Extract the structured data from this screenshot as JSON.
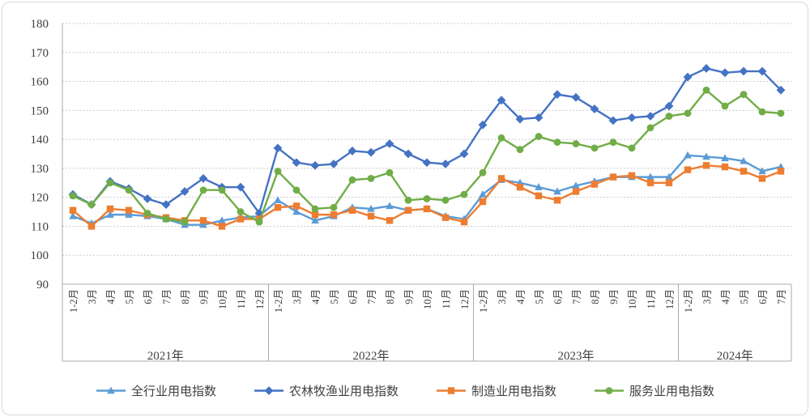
{
  "chart_data": {
    "type": "line",
    "title": "",
    "xlabel": "",
    "ylabel": "",
    "ylim": [
      90,
      180
    ],
    "yticks": [
      90,
      100,
      110,
      120,
      130,
      140,
      150,
      160,
      170,
      180
    ],
    "grid": "horizontal-dotted",
    "legend_position": "bottom",
    "style": {
      "background": "#ffffff",
      "border_color": "#d9d9d9",
      "axis_color": "#ababab",
      "grid_color": "#c9c9c9",
      "text_color": "#404040"
    },
    "year_groups": [
      {
        "label": "2021年",
        "months": [
          "1-2月",
          "3月",
          "4月",
          "5月",
          "6月",
          "7月",
          "8月",
          "9月",
          "10月",
          "11月",
          "12月"
        ]
      },
      {
        "label": "2022年",
        "months": [
          "1-2月",
          "3月",
          "4月",
          "5月",
          "6月",
          "7月",
          "8月",
          "9月",
          "10月",
          "11月",
          "12月"
        ]
      },
      {
        "label": "2023年",
        "months": [
          "1-2月",
          "3月",
          "4月",
          "5月",
          "6月",
          "7月",
          "8月",
          "9月",
          "10月",
          "11月",
          "12月"
        ]
      },
      {
        "label": "2024年",
        "months": [
          "1-2月",
          "3月",
          "4月",
          "5月",
          "6月",
          "7月"
        ]
      }
    ],
    "series": [
      {
        "name": "全行业用电指数",
        "marker": "triangle",
        "color": "#5B9BD5",
        "values": [
          113.5,
          111,
          114,
          114,
          113.5,
          112.5,
          110.5,
          110.5,
          112,
          113,
          113.5,
          119,
          115,
          112,
          113.5,
          116.5,
          116,
          117,
          115.5,
          116,
          113.5,
          112.5,
          121,
          126,
          125,
          123.5,
          122,
          124,
          125.5,
          127,
          127,
          127,
          127,
          134.5,
          134,
          133.5,
          132.5,
          129,
          130.5
        ]
      },
      {
        "name": "农林牧渔业用电指数",
        "marker": "diamond",
        "color": "#4472C4",
        "values": [
          121,
          117.5,
          125.5,
          123,
          119.5,
          117.5,
          122,
          126.5,
          123.5,
          123.5,
          114.5,
          137,
          132,
          131,
          131.5,
          136,
          135.5,
          138.5,
          135,
          132,
          131.5,
          135,
          145,
          153.5,
          147,
          147.5,
          155.5,
          154.5,
          150.5,
          146.5,
          147.5,
          148,
          151.5,
          161.5,
          164.5,
          163,
          163.5,
          163.5,
          157
        ]
      },
      {
        "name": "制造业用电指数",
        "marker": "square",
        "color": "#ED7D31",
        "values": [
          115.5,
          110,
          116,
          115.5,
          114,
          113,
          112,
          112,
          110,
          112.5,
          112.5,
          116.5,
          117,
          114,
          114,
          115.5,
          113.5,
          112,
          115.5,
          116,
          113,
          111.5,
          118.5,
          126.5,
          123.5,
          120.5,
          119,
          122,
          124.5,
          127,
          127.5,
          125,
          125,
          129.5,
          131,
          130.5,
          129,
          126.5,
          129
        ]
      },
      {
        "name": "服务业用电指数",
        "marker": "circle",
        "color": "#70AD47",
        "values": [
          120.5,
          117.5,
          125,
          122.5,
          114.5,
          112.5,
          111.5,
          122.5,
          122.5,
          115,
          111.5,
          129,
          122.5,
          116,
          116.5,
          126,
          126.5,
          128.5,
          119,
          119.5,
          119,
          121,
          128.5,
          140.5,
          136.5,
          141,
          139,
          138.5,
          137,
          139,
          137,
          144,
          148,
          149,
          157,
          151.5,
          155.5,
          149.5,
          149
        ]
      }
    ]
  }
}
